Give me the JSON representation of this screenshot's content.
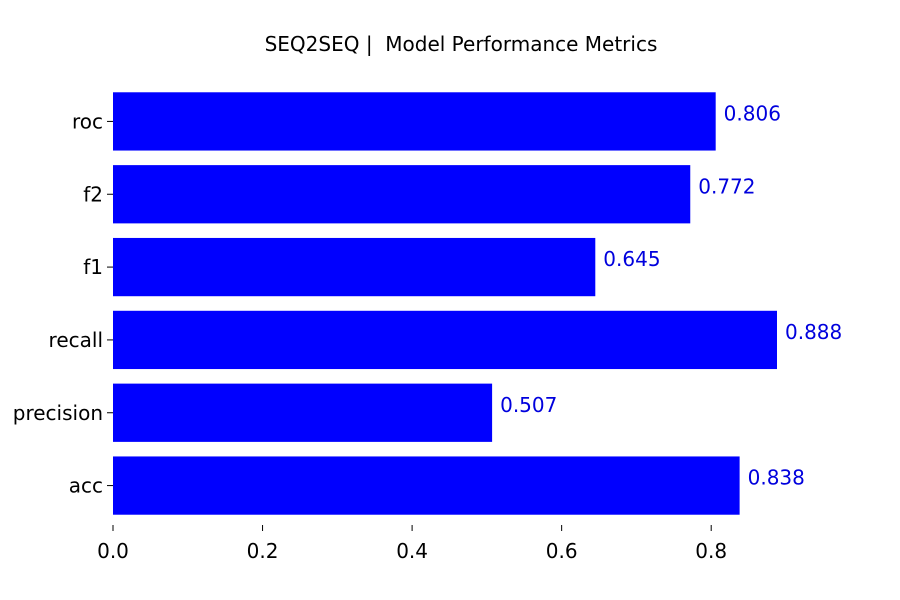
{
  "chart_data": {
    "type": "bar",
    "orientation": "horizontal",
    "title": "SEQ2SEQ |  Model Performance Metrics",
    "categories": [
      "acc",
      "precision",
      "recall",
      "f1",
      "f2",
      "roc"
    ],
    "values": [
      0.838,
      0.507,
      0.888,
      0.645,
      0.772,
      0.806
    ],
    "value_labels": [
      "0.838",
      "0.507",
      "0.888",
      "0.645",
      "0.772",
      "0.806"
    ],
    "xlabel": "",
    "ylabel": "",
    "xlim": [
      0,
      0.888
    ],
    "xticks": [
      0.0,
      0.2,
      0.4,
      0.6,
      0.8
    ],
    "xtick_labels": [
      "0.0",
      "0.2",
      "0.4",
      "0.6",
      "0.8"
    ],
    "grid": false,
    "legend": "none",
    "bar_color": "#0000ff",
    "label_color": "#0000dd"
  }
}
